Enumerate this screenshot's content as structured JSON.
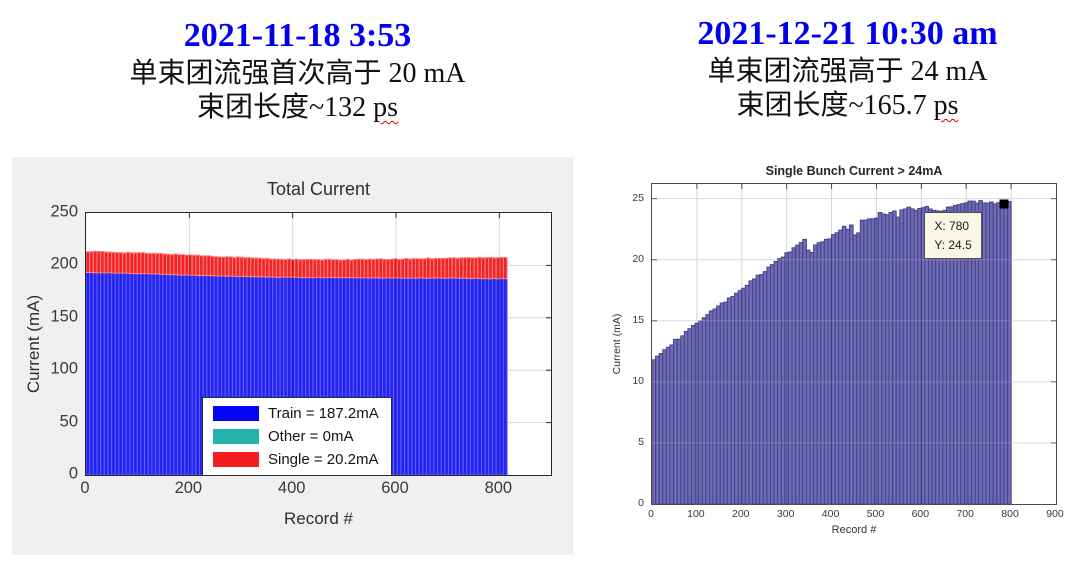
{
  "header_left": {
    "datetime": "2021-11-18 3:53",
    "line1": "单束团流强首次高于 20 mA",
    "line2_text": "束团长度~132 ",
    "line2_unit": "ps"
  },
  "header_right": {
    "datetime": "2021-12-21 10:30 am",
    "line1": "单束团流强高于 24 mA",
    "line2_text": "束团长度~165.7 ",
    "line2_unit": "ps"
  },
  "colors": {
    "header_accent": "#0000f0",
    "figure_bg_left": "#f0f0f0",
    "figure_bg_right": "#ffffff"
  },
  "chart_data": [
    {
      "id": "total-current",
      "type": "bar",
      "stacked": true,
      "title": "Total Current",
      "xlabel": "Record #",
      "ylabel": "Current (mA)",
      "xlim": [
        0,
        900
      ],
      "ylim": [
        0,
        250
      ],
      "xticks": [
        0,
        200,
        400,
        600,
        800
      ],
      "yticks": [
        0,
        50,
        100,
        150,
        200,
        250
      ],
      "grid": true,
      "grid_color": "#d9d9d9",
      "axis_color": "#303030",
      "overlay_vgrid": "rgba(10,10,60,0.30)",
      "bar_xmax": 815,
      "bar_count": 115,
      "series": [
        {
          "name": "Train",
          "color": "#2424f0",
          "edge": "#5e5eff"
        },
        {
          "name": "Other",
          "color": "#23b3ab",
          "edge": "#23b3ab"
        },
        {
          "name": "Single",
          "color": "#f12525",
          "edge": "#ff8181"
        }
      ],
      "legend": [
        {
          "label": "Train = 187.2mA",
          "swatch": "#0505f5"
        },
        {
          "label": "Other = 0mA",
          "swatch": "#23b3ab"
        },
        {
          "label": "Single = 20.2mA",
          "swatch": "#f51d1d"
        }
      ],
      "samples": [
        [
          0,
          193.5,
          213.5
        ],
        [
          50,
          192.8,
          212.6
        ],
        [
          100,
          192.2,
          212.0
        ],
        [
          150,
          191.5,
          211.0
        ],
        [
          200,
          190.6,
          210.0
        ],
        [
          250,
          190.0,
          208.6
        ],
        [
          300,
          189.4,
          207.6
        ],
        [
          350,
          189.0,
          206.4
        ],
        [
          400,
          188.6,
          205.6
        ],
        [
          450,
          188.5,
          205.4
        ],
        [
          500,
          188.4,
          205.5
        ],
        [
          550,
          188.2,
          205.7
        ],
        [
          600,
          188.0,
          206.0
        ],
        [
          650,
          188.0,
          206.5
        ],
        [
          700,
          187.8,
          207.0
        ],
        [
          750,
          187.6,
          207.3
        ],
        [
          815,
          187.2,
          207.5
        ]
      ]
    },
    {
      "id": "single-bunch",
      "type": "bar",
      "stacked": false,
      "title": "Single Bunch Current > 24mA",
      "xlabel": "Record #",
      "ylabel": "Current (mA)",
      "xlim": [
        0,
        900
      ],
      "ylim": [
        0,
        26.2
      ],
      "xticks": [
        0,
        100,
        200,
        300,
        400,
        500,
        600,
        700,
        800,
        900
      ],
      "yticks": [
        0,
        5,
        10,
        15,
        20,
        25
      ],
      "grid": true,
      "grid_color": "#d4d4d4",
      "axis_color": "#4c4c4c",
      "overlay_vgrid": "rgba(0,0,0,0.18)",
      "overlay_hgrid": "rgba(255,255,255,0.18)",
      "bar_xmax": 800,
      "bar_count": 100,
      "bar_color": "#6f6bb3",
      "bar_edge": "#45428e",
      "samples": [
        [
          0,
          11.8
        ],
        [
          25,
          12.6
        ],
        [
          50,
          13.3
        ],
        [
          75,
          14.0
        ],
        [
          100,
          14.8
        ],
        [
          125,
          15.5
        ],
        [
          150,
          16.2
        ],
        [
          175,
          16.9
        ],
        [
          200,
          17.6
        ],
        [
          225,
          18.3
        ],
        [
          250,
          19.0
        ],
        [
          275,
          19.8
        ],
        [
          300,
          20.5
        ],
        [
          320,
          21.0
        ],
        [
          335,
          21.6
        ],
        [
          344,
          21.7
        ],
        [
          352,
          19.9
        ],
        [
          360,
          21.2
        ],
        [
          376,
          21.4
        ],
        [
          392,
          21.7
        ],
        [
          408,
          22.1
        ],
        [
          424,
          22.7
        ],
        [
          436,
          22.5
        ],
        [
          448,
          22.9
        ],
        [
          456,
          21.1
        ],
        [
          464,
          23.2
        ],
        [
          480,
          23.4
        ],
        [
          496,
          23.4
        ],
        [
          512,
          23.9
        ],
        [
          528,
          23.7
        ],
        [
          540,
          24.0
        ],
        [
          548,
          23.5
        ],
        [
          556,
          24.1
        ],
        [
          572,
          24.3
        ],
        [
          588,
          24.1
        ],
        [
          600,
          24.3
        ],
        [
          616,
          24.4
        ],
        [
          632,
          23.9
        ],
        [
          648,
          24.1
        ],
        [
          664,
          24.3
        ],
        [
          680,
          24.5
        ],
        [
          696,
          24.7
        ],
        [
          712,
          24.9
        ],
        [
          728,
          24.7
        ],
        [
          744,
          24.8
        ],
        [
          760,
          24.6
        ],
        [
          780,
          24.5
        ],
        [
          800,
          24.7
        ]
      ],
      "datatip": {
        "lines": [
          "X: 780",
          "Y: 24.5"
        ],
        "marker": {
          "x": 785,
          "y": 24.55
        }
      }
    }
  ]
}
